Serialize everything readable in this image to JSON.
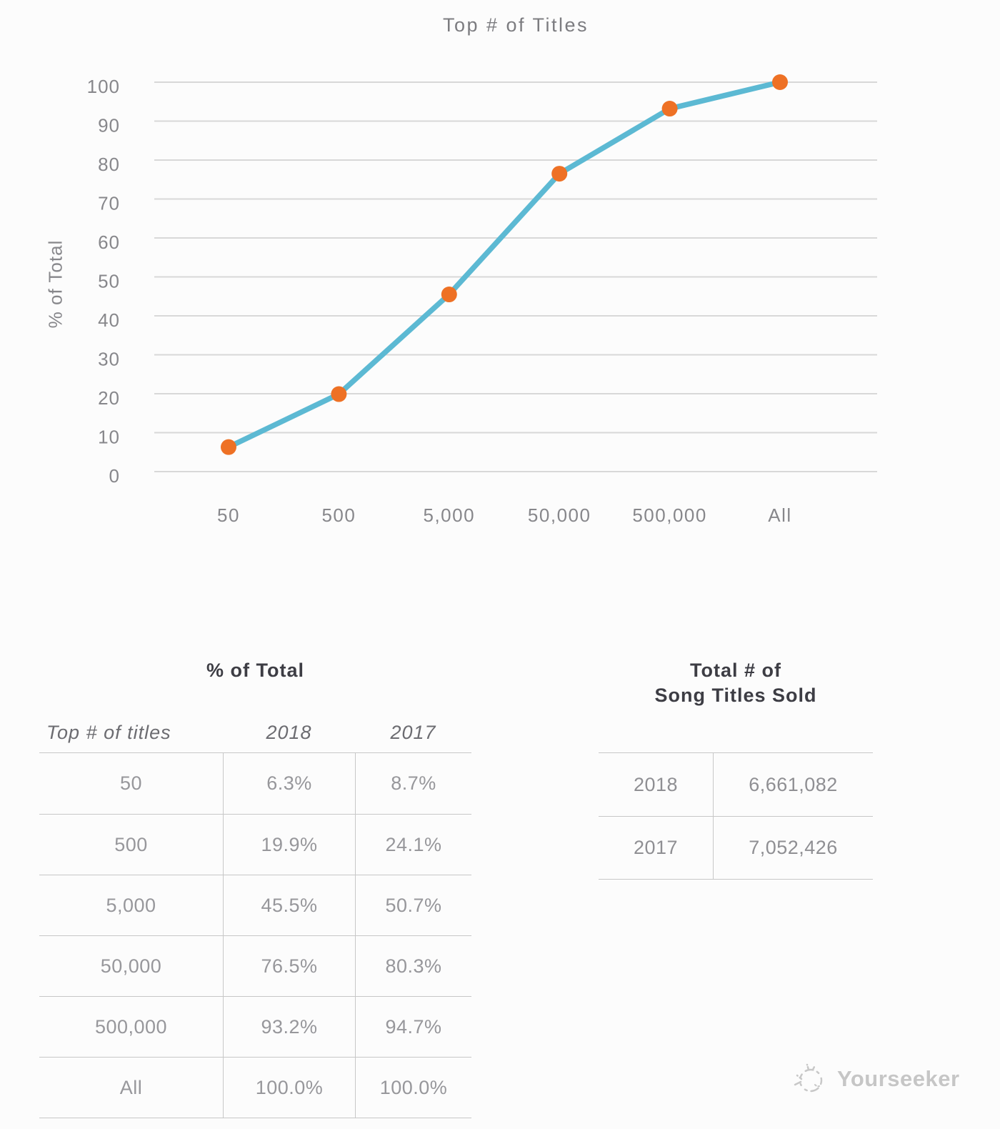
{
  "chart_data": {
    "type": "line",
    "title": "Top # of Titles",
    "xlabel": "",
    "ylabel": "% of Total",
    "categories": [
      "50",
      "500",
      "5,000",
      "50,000",
      "500,000",
      "All"
    ],
    "series": [
      {
        "name": "2018",
        "values": [
          6.3,
          19.9,
          45.5,
          76.5,
          93.2,
          100.0
        ]
      }
    ],
    "ylim": [
      0,
      100
    ],
    "ytick_step": 10,
    "grid": "horizontal-only",
    "legend": "none",
    "line_color": "#5cb9d3",
    "marker_color": "#ee7125",
    "gridline_color": "#d8d8d8"
  },
  "left_table": {
    "title": "% of Total",
    "columns": [
      "Top # of titles",
      "2018",
      "2017"
    ],
    "rows": [
      {
        "label": "50",
        "v2018": "6.3%",
        "v2017": "8.7%"
      },
      {
        "label": "500",
        "v2018": "19.9%",
        "v2017": "24.1%"
      },
      {
        "label": "5,000",
        "v2018": "45.5%",
        "v2017": "50.7%"
      },
      {
        "label": "50,000",
        "v2018": "76.5%",
        "v2017": "80.3%"
      },
      {
        "label": "500,000",
        "v2018": "93.2%",
        "v2017": "94.7%"
      },
      {
        "label": "All",
        "v2018": "100.0%",
        "v2017": "100.0%"
      }
    ]
  },
  "right_table": {
    "title_line1": "Total # of",
    "title_line2": "Song Titles Sold",
    "rows": [
      {
        "label": "2018",
        "value": "6,661,082"
      },
      {
        "label": "2017",
        "value": "7,052,426"
      }
    ]
  },
  "watermark": {
    "text": "Yourseeker"
  }
}
